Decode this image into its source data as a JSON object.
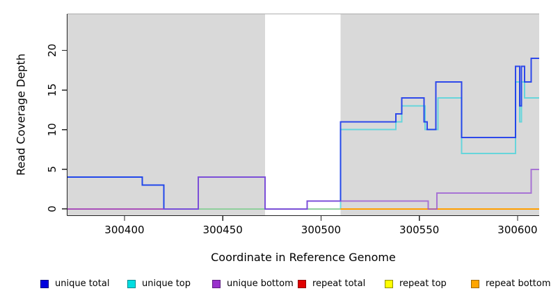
{
  "chart_data": {
    "type": "line",
    "step": true,
    "title": "",
    "xlabel": "Coordinate in Reference Genome",
    "ylabel": "Read Coverage Depth",
    "xlim": [
      300371,
      300611
    ],
    "ylim": [
      -0.8,
      24.6
    ],
    "xticks": [
      300400,
      300450,
      300500,
      300550,
      300600
    ],
    "yticks": [
      0,
      5,
      10,
      15,
      20
    ],
    "grid": false,
    "legend_position": "bottom",
    "plot_background": "#d9d9d9",
    "gap_region": {
      "from": 300471.5,
      "to": 300510,
      "color": "#ffffff"
    },
    "series": [
      {
        "name": "unique top",
        "legend_color": "#00dde0",
        "legend_border": "#00898e",
        "render_color": "rgba(40,210,220,0.65)",
        "points": [
          [
            300371,
            4
          ],
          [
            300409,
            3
          ],
          [
            300420,
            0
          ],
          [
            300510,
            10
          ],
          [
            300538,
            11
          ],
          [
            300541,
            13
          ],
          [
            300553,
            10
          ],
          [
            300559.5,
            14
          ],
          [
            300571.5,
            7
          ],
          [
            300599,
            16
          ],
          [
            300601,
            11
          ],
          [
            300602,
            16
          ],
          [
            300603.5,
            14
          ],
          [
            300611,
            14
          ]
        ]
      },
      {
        "name": "repeat total",
        "legend_color": "#e00000",
        "legend_border": "#8e0000",
        "render_color": "rgba(230,40,90,0.8)",
        "points": [
          [
            300371,
            0
          ],
          [
            300420,
            0
          ]
        ]
      },
      {
        "name": "repeat top",
        "legend_color": "#ffff00",
        "legend_border": "#8e8e00",
        "render_color": "#8fcf9c",
        "points": [
          [
            300437.5,
            0
          ],
          [
            300510,
            0
          ]
        ]
      },
      {
        "name": "repeat bottom",
        "legend_color": "#ffa500",
        "legend_border": "#9e6600",
        "render_color": "#ff9e00",
        "points": [
          [
            300510,
            0
          ],
          [
            300611,
            0
          ]
        ]
      },
      {
        "name": "unique total",
        "legend_color": "#0000dd",
        "legend_border": "#000080",
        "render_color": "rgba(25,55,235,0.9)",
        "points": [
          [
            300371,
            4
          ],
          [
            300409,
            3
          ],
          [
            300420,
            0
          ],
          [
            300437.5,
            4
          ],
          [
            300471.5,
            0
          ],
          [
            300493,
            1
          ],
          [
            300510,
            11
          ],
          [
            300538,
            12
          ],
          [
            300541,
            14
          ],
          [
            300552.5,
            11
          ],
          [
            300554,
            10
          ],
          [
            300558.5,
            16
          ],
          [
            300571.5,
            9
          ],
          [
            300599,
            18
          ],
          [
            300601,
            13
          ],
          [
            300602,
            18
          ],
          [
            300603.5,
            16
          ],
          [
            300607,
            19
          ],
          [
            300611,
            19
          ]
        ]
      },
      {
        "name": "unique bottom",
        "legend_color": "#9932cc",
        "legend_border": "#5e1e80",
        "render_color": "rgba(150,80,210,0.75)",
        "points": [
          [
            300371,
            0
          ],
          [
            300437.5,
            4
          ],
          [
            300471.5,
            0
          ],
          [
            300493,
            1
          ],
          [
            300554.5,
            0
          ],
          [
            300559,
            2
          ],
          [
            300607,
            5
          ],
          [
            300611,
            5
          ]
        ]
      }
    ],
    "legend_order": [
      "unique total",
      "unique top",
      "unique bottom",
      "repeat total",
      "repeat top",
      "repeat bottom"
    ]
  }
}
